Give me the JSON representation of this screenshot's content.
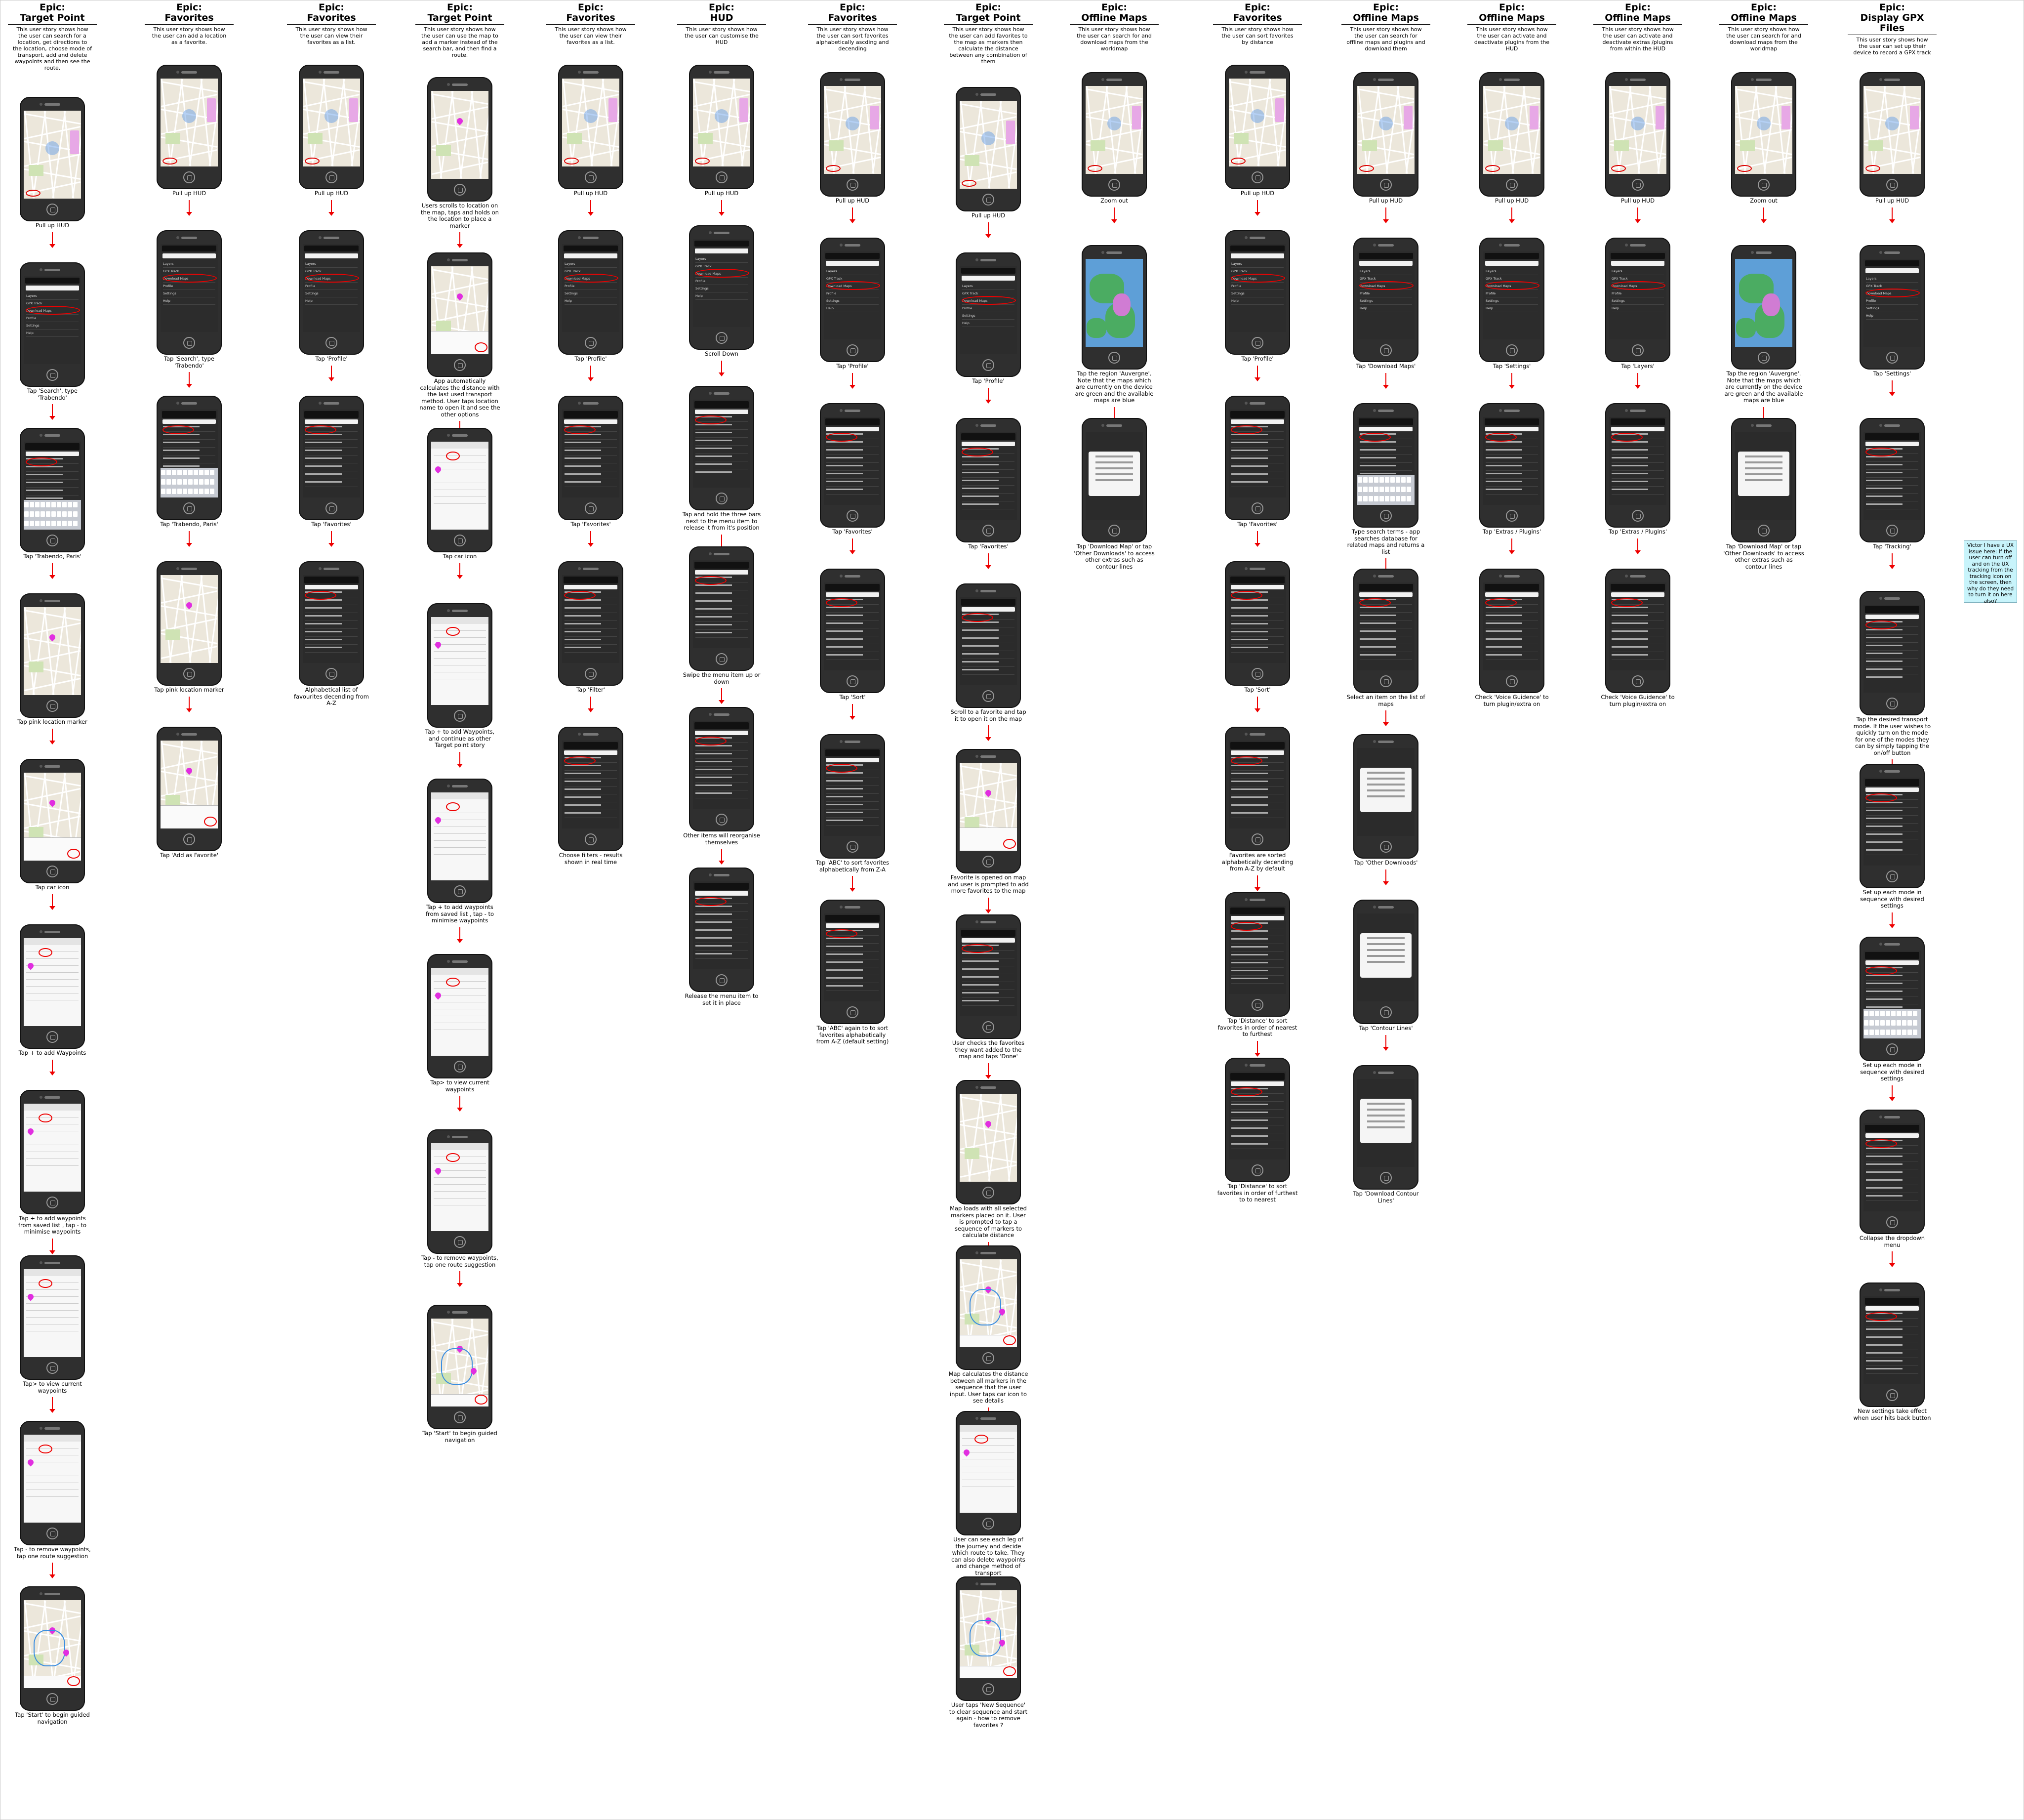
{
  "columns": [
    {
      "epic": "Epic:",
      "title": "Target Point",
      "description": "This user story shows how the user can search for a location, get directions to the location, choose mode of transport, add and delete waypoints and then see the route.",
      "steps": [
        {
          "screen": "map",
          "caption": "Pull up HUD"
        },
        {
          "screen": "menu",
          "caption": "Tap 'Search', type 'Trabendo'"
        },
        {
          "screen": "keyboard",
          "caption": "Tap 'Trabendo, Paris'"
        },
        {
          "screen": "pinmap",
          "caption": "Tap pink location marker"
        },
        {
          "screen": "pinpopup",
          "caption": "Tap car icon"
        },
        {
          "screen": "white",
          "caption": "Tap + to add Waypoints"
        },
        {
          "screen": "white",
          "caption": "Tap + to add waypoints from saved list , tap - to minimise waypoints"
        },
        {
          "screen": "white",
          "caption": "Tap> to view current waypoints"
        },
        {
          "screen": "white",
          "caption": "Tap - to remove waypoints, tap one route suggestion"
        },
        {
          "screen": "route",
          "caption": "Tap 'Start' to begin guided navigation"
        }
      ]
    },
    {
      "epic": "Epic:",
      "title": "Favorites",
      "description": "This user story shows how the user can add a location as a favorite.",
      "steps": [
        {
          "screen": "map",
          "caption": "Pull up HUD"
        },
        {
          "screen": "menu",
          "caption": "Tap 'Search', type 'Trabendo'"
        },
        {
          "screen": "keyboard",
          "caption": "Tap 'Trabendo, Paris'"
        },
        {
          "screen": "pinmap",
          "caption": "Tap pink location marker"
        },
        {
          "screen": "pinpopup",
          "caption": "Tap 'Add as Favorite'"
        }
      ]
    },
    {
      "epic": "Epic:",
      "title": "Favorites",
      "description": "This user story shows how the user can view their favorites as a list.",
      "steps": [
        {
          "screen": "map",
          "caption": "Pull up HUD"
        },
        {
          "screen": "menu",
          "caption": "Tap 'Profile'"
        },
        {
          "screen": "list",
          "caption": "Tap 'Favorites'"
        },
        {
          "screen": "list",
          "caption": "Alphabetical list of favourites decending from A-Z"
        }
      ]
    },
    {
      "epic": "Epic:",
      "title": "Target Point",
      "description": "This user story shows how the user can use the map to add a marker instead of the search bar, and then find a route.",
      "steps": [
        {
          "screen": "pinmap",
          "caption": "Users scrolls to location on the map, taps and holds on the location to place a marker"
        },
        {
          "screen": "pinpopup",
          "caption": "App automatically calculates the distance with the last used transport method. User taps location name to open it and see the other options"
        },
        {
          "screen": "white",
          "caption": "Tap car icon"
        },
        {
          "screen": "white",
          "caption": "Tap + to add Waypoints, and continue as other Target point story"
        },
        {
          "screen": "white",
          "caption": "Tap + to add waypoints from saved list , tap - to minimise waypoints"
        },
        {
          "screen": "white",
          "caption": "Tap> to view current waypoints"
        },
        {
          "screen": "white",
          "caption": "Tap - to remove waypoints, tap one route suggestion"
        },
        {
          "screen": "route",
          "caption": "Tap 'Start' to begin guided navigation"
        }
      ]
    },
    {
      "epic": "Epic:",
      "title": "Favorites",
      "description": "This user story shows how the user can view their favorites as a list.",
      "steps": [
        {
          "screen": "map",
          "caption": "Pull up HUD"
        },
        {
          "screen": "menu",
          "caption": "Tap 'Profile'"
        },
        {
          "screen": "list",
          "caption": "Tap 'Favorites'"
        },
        {
          "screen": "list",
          "caption": "Tap 'Filter'"
        },
        {
          "screen": "list",
          "caption": "Choose filters - results shown in real time"
        }
      ]
    },
    {
      "epic": "Epic:",
      "title": "HUD",
      "description": "This user story shows how the user can customise the HUD",
      "steps": [
        {
          "screen": "map",
          "caption": "Pull up HUD"
        },
        {
          "screen": "menu",
          "caption": "Scroll Down"
        },
        {
          "screen": "list",
          "caption": "Tap and hold the three bars next to the menu item to release it from it's position"
        },
        {
          "screen": "list",
          "caption": "Swipe the menu item up or down"
        },
        {
          "screen": "list",
          "caption": "Other items will reorganise themselves"
        },
        {
          "screen": "list",
          "caption": "Release the menu item to set it in place"
        }
      ]
    },
    {
      "epic": "Epic:",
      "title": "Favorites",
      "description": "This user story shows how the user can sort favorites alphabetically ascding and decending",
      "steps": [
        {
          "screen": "map",
          "caption": "Pull up HUD"
        },
        {
          "screen": "menu",
          "caption": "Tap 'Profile'"
        },
        {
          "screen": "list",
          "caption": "Tap 'Favorites'"
        },
        {
          "screen": "list",
          "caption": "Tap 'Sort'"
        },
        {
          "screen": "list",
          "caption": "Tap 'ABC' to sort favorites alphabetically from Z-A"
        },
        {
          "screen": "list",
          "caption": "Tap 'ABC' again to to sort favorites alphabetically from A-Z (default setting)"
        }
      ]
    },
    {
      "epic": "Epic:",
      "title": "Target Point",
      "description": "This user story shows how the user can add favorites to the map as markers then calculate the distance between any combination of them",
      "steps": [
        {
          "screen": "map",
          "caption": "Pull up HUD"
        },
        {
          "screen": "menu",
          "caption": "Tap 'Profile'"
        },
        {
          "screen": "list",
          "caption": "Tap 'Favorites'"
        },
        {
          "screen": "list",
          "caption": "Scroll to a favorite and tap it to open it on the map"
        },
        {
          "screen": "pinpopup",
          "caption": "Favorite is opened on map and user is prompted to add more favorites to the map"
        },
        {
          "screen": "list",
          "caption": "User checks the favorites they want added to the map and taps 'Done'"
        },
        {
          "screen": "pinmap",
          "caption": "Map loads with all selected markers placed on it. User is prompted to tap a sequence of markers to calculate distance"
        },
        {
          "screen": "route",
          "caption": "Map calculates the distance between all markers in the sequence that the user input. User taps car icon to see details"
        },
        {
          "screen": "white",
          "caption": "User can see each leg of the journey and decide which route to take. They can also delete waypoints and change method of transport"
        },
        {
          "screen": "route",
          "caption": "User taps 'New Sequence' to clear sequence and start again - how to remove favorites ?"
        }
      ]
    },
    {
      "epic": "Epic:",
      "title": "Offline Maps",
      "description": "This user story shows how the user can search for and download maps from the worldmap",
      "steps": [
        {
          "screen": "map",
          "caption": "Zoom out"
        },
        {
          "screen": "world",
          "caption": "Tap the region 'Auvergne'. Note that the maps which are currently on the device are green and the available maps are blue"
        },
        {
          "screen": "dialog",
          "caption": "Tap 'Download Map' or tap 'Other Downloads' to access other extras such as contour lines"
        }
      ]
    },
    {
      "epic": "Epic:",
      "title": "Favorites",
      "description": "This user story shows how the user can sort favorites by distance",
      "steps": [
        {
          "screen": "map",
          "caption": "Pull up HUD"
        },
        {
          "screen": "menu",
          "caption": "Tap 'Profile'"
        },
        {
          "screen": "list",
          "caption": "Tap 'Favorites'"
        },
        {
          "screen": "list",
          "caption": "Tap 'Sort'"
        },
        {
          "screen": "list",
          "caption": "Favorites are sorted alphabetically decending from A-Z by default"
        },
        {
          "screen": "list",
          "caption": "Tap 'Distance' to sort favorites in order of nearest to furthest"
        },
        {
          "screen": "list",
          "caption": "Tap 'Distance' to sort favorites in order of furthest to to nearest"
        }
      ]
    },
    {
      "epic": "Epic:",
      "title": "Offline Maps",
      "description": "This user story shows how the user can search for offline maps and plugins and download them",
      "steps": [
        {
          "screen": "map",
          "caption": "Pull up HUD"
        },
        {
          "screen": "menu",
          "caption": "Tap 'Download Maps'"
        },
        {
          "screen": "keyboard",
          "caption": "Type search terms - app searches database for related maps and returns a list"
        },
        {
          "screen": "list",
          "caption": "Select an item on the list of maps"
        },
        {
          "screen": "dialog",
          "caption": "Tap 'Other Downloads'"
        },
        {
          "screen": "dialog",
          "caption": "Tap 'Contour Lines'"
        },
        {
          "screen": "dialog",
          "caption": "Tap 'Download Contour Lines'"
        }
      ]
    },
    {
      "epic": "Epic:",
      "title": "Offline Maps",
      "description": "This user story shows how the user can activate and deactivate plugins from the HUD",
      "steps": [
        {
          "screen": "map",
          "caption": "Pull up HUD"
        },
        {
          "screen": "menu",
          "caption": "Tap 'Settings'"
        },
        {
          "screen": "list",
          "caption": "Tap 'Extras / Plugins'"
        },
        {
          "screen": "list",
          "caption": "Check 'Voice Guidence' to turn plugin/extra on"
        }
      ]
    },
    {
      "epic": "Epic:",
      "title": "Offline Maps",
      "description": "This user story shows how the user can activate and deactivate extras /plugins from within the HUD",
      "steps": [
        {
          "screen": "map",
          "caption": "Pull up HUD"
        },
        {
          "screen": "menu",
          "caption": "Tap 'Layers'"
        },
        {
          "screen": "list",
          "caption": "Tap 'Extras / Plugins'"
        },
        {
          "screen": "list",
          "caption": "Check 'Voice Guidence' to turn plugin/extra on"
        }
      ]
    },
    {
      "epic": "Epic:",
      "title": "Offline Maps",
      "description": "This user story shows how the user can search for and download maps from the worldmap",
      "steps": [
        {
          "screen": "map",
          "caption": "Zoom out"
        },
        {
          "screen": "world",
          "caption": "Tap the region 'Auvergne'. Note that the maps which are currently on the device are green and the available maps are blue"
        },
        {
          "screen": "dialog",
          "caption": "Tap 'Download Map' or tap 'Other Downloads' to access other extras such as contour lines"
        }
      ]
    },
    {
      "epic": "Epic:",
      "title": "Display GPX Files",
      "description": "This user story shows how the user can set up their device to record a GPX track",
      "steps": [
        {
          "screen": "map",
          "caption": "Pull up HUD"
        },
        {
          "screen": "menu",
          "caption": "Tap 'Settings'"
        },
        {
          "screen": "list",
          "caption": "Tap 'Tracking'"
        },
        {
          "screen": "list",
          "caption": "Tap the desired transport mode. If the user wishes to quickly turn on the mode for one of the modes they can by simply tapping the on/off button"
        },
        {
          "screen": "list",
          "caption": "Set up each mode in sequence with desired settings"
        },
        {
          "screen": "keyboard",
          "caption": "Set up each mode in sequence with desired settings"
        },
        {
          "screen": "list",
          "caption": "Collapse the dropdown menu"
        },
        {
          "screen": "list",
          "caption": "New settings take effect when user hits back button"
        }
      ]
    }
  ],
  "note": "Victor I have a UX issue here: If the user can turn off and on the UX tracking from the tracking icon on the screen, then why do they need to turn it on here also?",
  "menu_items": [
    "Layers",
    "GPX Track",
    "Download Maps",
    "Profile",
    "Settings",
    "Help"
  ],
  "colors": {
    "arrow": "#e00000",
    "phone": "#2f2f2f",
    "map": "#ece7db",
    "note": "#c8f4fb",
    "marker": "#e12ee0"
  }
}
